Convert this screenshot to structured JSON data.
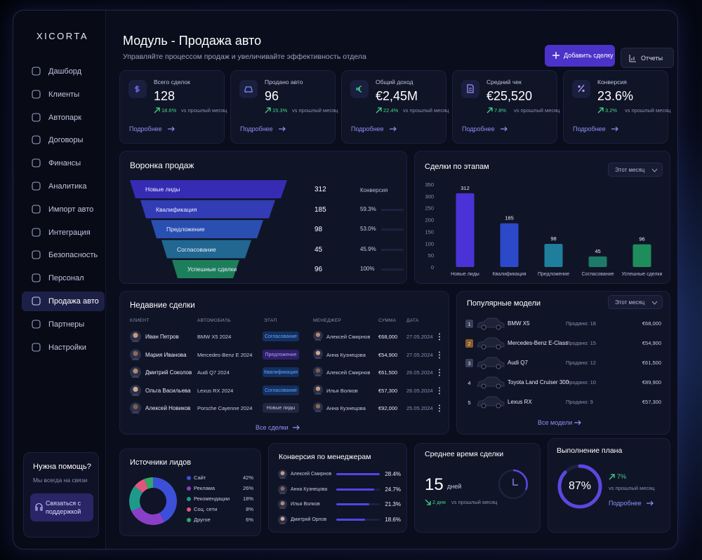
{
  "sidebar": {
    "brand": "XICORTA",
    "nav": [
      "Дашборд",
      "Клиенты",
      "Автопарк",
      "Договоры",
      "Финансы",
      "Аналитика",
      "Импорт авто",
      "Интеграция",
      "Безопасность",
      "Персонал",
      "Продажа авто",
      "Партнеры",
      "Настройки"
    ],
    "help": {
      "title": "Нужна помощь?",
      "text": "Мы всегда на связи",
      "button": "Связаться с поддержкой"
    }
  },
  "header": {
    "title": "Модуль - Продажа авто",
    "subtitle": "Управляйте процессом продаж и увеличивайте эффективность отдела",
    "add_button": "Добавить сделку",
    "reports_button": "Отчеты"
  },
  "kpis": [
    {
      "label": "Всего сделок",
      "value": "128",
      "change": "18.6%",
      "note": "vs прошлый месяц",
      "link": "Подробнее"
    },
    {
      "label": "Продано авто",
      "value": "96",
      "change": "15.3%",
      "note": "vs прошлый месяц",
      "link": "Подробнее"
    },
    {
      "label": "Общий доход",
      "value": "€2,45M",
      "change": "22.4%",
      "note": "vs прошлый месяц",
      "link": "Подробнее"
    },
    {
      "label": "Средний чек",
      "value": "€25,520",
      "change": "7.8%",
      "note": "vs прошлый месяц",
      "link": "Подробнее"
    },
    {
      "label": "Конверсия",
      "value": "23.6%",
      "change": "3.2%",
      "note": "vs прошлый месяц",
      "link": "Подробнее"
    }
  ],
  "funnel": {
    "title": "Воронка продаж",
    "conversion_header": "Конверсия",
    "stages": [
      {
        "name": "Новые лиды",
        "count": 312
      },
      {
        "name": "Квалификация",
        "count": 185,
        "conversion": "59.3%"
      },
      {
        "name": "Предложение",
        "count": 98,
        "conversion": "53.0%"
      },
      {
        "name": "Согласование",
        "count": 45,
        "conversion": "45.9%"
      },
      {
        "name": "Успешные сделки",
        "count": 96,
        "conversion": "100%"
      }
    ]
  },
  "chart_data": [
    {
      "type": "bar",
      "title": "Сделки по этапам",
      "period": "Этот месяц",
      "categories": [
        "Новые лиды",
        "Квалификация",
        "Предложение",
        "Согласование",
        "Успешные сделки"
      ],
      "values": [
        312,
        185,
        98,
        45,
        96
      ],
      "colors": [
        "#4a33d6",
        "#2c49c9",
        "#1f7e9c",
        "#1d7a68",
        "#1f8c5c"
      ],
      "ylim": [
        0,
        350
      ],
      "yticks": [
        0,
        50,
        100,
        150,
        200,
        250,
        300,
        350
      ],
      "grid": false
    },
    {
      "type": "donut",
      "title": "Источники лидов",
      "categories": [
        "Сайт",
        "Реклама",
        "Рекомендации",
        "Соц. сети",
        "Другое"
      ],
      "values": [
        42,
        26,
        18,
        8,
        6
      ],
      "value_labels": [
        "42%",
        "26%",
        "18%",
        "8%",
        "6%"
      ],
      "colors": [
        "#3c4fd8",
        "#8a3fc8",
        "#1f9a8a",
        "#e0567a",
        "#2fa86a"
      ]
    },
    {
      "type": "hbar",
      "title": "Конверсия по менеджерам",
      "categories": [
        "Алексей Смирнов",
        "Анна Кузнецова",
        "Илья Волков",
        "Дмитрий Орлов"
      ],
      "values": [
        28.4,
        24.7,
        21.3,
        18.6
      ],
      "value_labels": [
        "28.4%",
        "24.7%",
        "21.3%",
        "18.6%"
      ],
      "color": "#4f46e5"
    }
  ],
  "recent_deals": {
    "title": "Недавние сделки",
    "columns": [
      "КЛИЕНТ",
      "АВТОМОБИЛЬ",
      "ЭТАП",
      "МЕНЕДЖЕР",
      "СУММА",
      "ДАТА"
    ],
    "rows": [
      [
        "Иван Петров",
        "BMW X5 2024",
        "Согласование",
        "Алексей Смирнов",
        "€68,000",
        "27.05.2024"
      ],
      [
        "Мария Иванова",
        "Mercedes-Benz E 2024",
        "Предложение",
        "Анна Кузнецова",
        "€54,900",
        "27.05.2024"
      ],
      [
        "Дмитрий Соколов",
        "Audi Q7 2024",
        "Квалификация",
        "Алексей Смирнов",
        "€61,500",
        "26.05.2024"
      ],
      [
        "Ольга Васильева",
        "Lexus RX 2024",
        "Согласование",
        "Илья Волков",
        "€57,300",
        "26.05.2024"
      ],
      [
        "Алексей Новиков",
        "Porsche Cayenne 2024",
        "Новые лиды",
        "Анна Кузнецова",
        "€92,000",
        "25.05.2024"
      ]
    ],
    "link": "Все сделки"
  },
  "popular_models": {
    "title": "Популярные модели",
    "period": "Этот месяц",
    "rows": [
      {
        "rank": 1,
        "model": "BMW X5",
        "sold": "Продано: 18",
        "price": "€68,000"
      },
      {
        "rank": 2,
        "model": "Mercedes-Benz E-Class",
        "sold": "Продано: 15",
        "price": "€54,900"
      },
      {
        "rank": 3,
        "model": "Audi Q7",
        "sold": "Продано: 12",
        "price": "€61,500"
      },
      {
        "rank": 4,
        "model": "Toyota Land Cruiser 300",
        "sold": "Продано: 10",
        "price": "€89,900"
      },
      {
        "rank": 5,
        "model": "Lexus RX",
        "sold": "Продано: 9",
        "price": "€57,300"
      }
    ],
    "link": "Все модели"
  },
  "deal_time": {
    "title": "Среднее время сделки",
    "value": 15,
    "unit": "дней",
    "change": "2 дня",
    "note": "vs прошлый месяц"
  },
  "plan": {
    "title": "Выполнение плана",
    "percent": 87,
    "percent_label": "87%",
    "change": "7%",
    "note": "vs прошлый месяц",
    "link": "Подробнее"
  }
}
